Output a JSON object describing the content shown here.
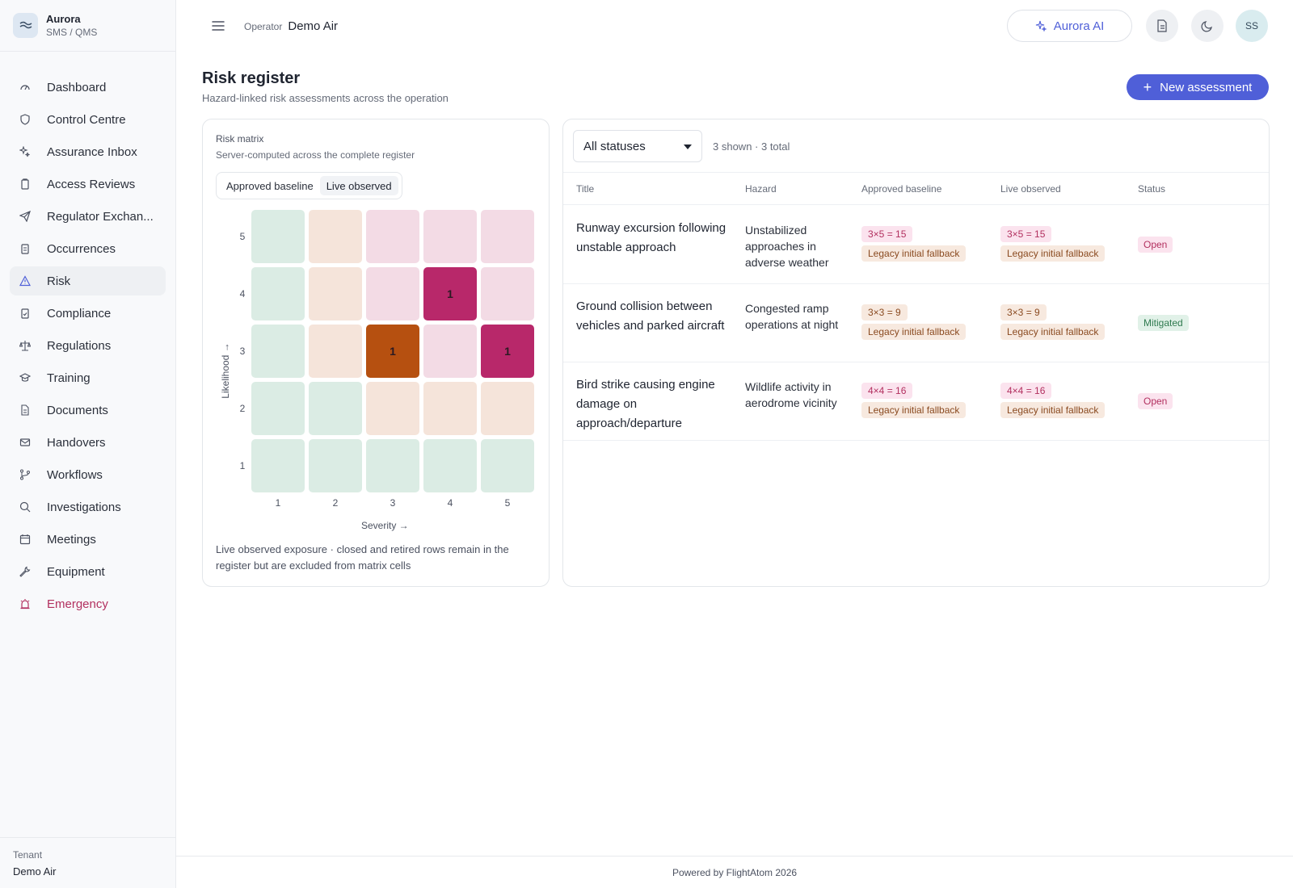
{
  "brand": {
    "name": "Aurora",
    "subtitle": "SMS / QMS"
  },
  "sidebar": {
    "items": [
      {
        "label": "Dashboard",
        "icon": "gauge-icon"
      },
      {
        "label": "Control Centre",
        "icon": "shield-icon"
      },
      {
        "label": "Assurance Inbox",
        "icon": "sparkle-icon"
      },
      {
        "label": "Access Reviews",
        "icon": "clipboard-icon"
      },
      {
        "label": "Regulator Exchan...",
        "icon": "send-icon"
      },
      {
        "label": "Occurrences",
        "icon": "clipboard-list-icon"
      },
      {
        "label": "Risk",
        "icon": "warning-triangle-icon",
        "active": true
      },
      {
        "label": "Compliance",
        "icon": "clipboard-check-icon"
      },
      {
        "label": "Regulations",
        "icon": "scales-icon"
      },
      {
        "label": "Training",
        "icon": "graduation-cap-icon"
      },
      {
        "label": "Documents",
        "icon": "document-icon"
      },
      {
        "label": "Handovers",
        "icon": "mail-icon"
      },
      {
        "label": "Workflows",
        "icon": "git-branch-icon"
      },
      {
        "label": "Investigations",
        "icon": "search-icon"
      },
      {
        "label": "Meetings",
        "icon": "calendar-icon"
      },
      {
        "label": "Equipment",
        "icon": "wrench-icon"
      },
      {
        "label": "Emergency",
        "icon": "siren-icon",
        "danger": true
      }
    ],
    "tenant_label": "Tenant",
    "tenant_name": "Demo Air"
  },
  "topbar": {
    "operator_label": "Operator",
    "operator_value": "Demo Air",
    "ai_label": "Aurora AI",
    "avatar_initials": "SS"
  },
  "page": {
    "title": "Risk register",
    "subtitle": "Hazard-linked risk assessments across the operation",
    "new_button": "New assessment"
  },
  "matrix": {
    "title": "Risk matrix",
    "subtitle": "Server-computed across the complete register",
    "toggle": [
      "Approved baseline",
      "Live observed"
    ],
    "toggle_selected": "Live observed",
    "severity_ticks": [
      "1",
      "2",
      "3",
      "4",
      "5"
    ],
    "likelihood_ticks": [
      "5",
      "4",
      "3",
      "2",
      "1"
    ],
    "x_axis": "Severity →",
    "y_axis": "Likelihood →",
    "cells": [
      {
        "likelihood": 4,
        "severity": 4,
        "count": "1"
      },
      {
        "likelihood": 3,
        "severity": 3,
        "count": "1"
      },
      {
        "likelihood": 3,
        "severity": 5,
        "count": "1"
      }
    ],
    "note": "Live observed exposure · closed and retired rows remain in the register but are excluded from matrix cells",
    "colors": {
      "low": "#dbece4",
      "medium": "#f5e4da",
      "high": "#f3dbe5",
      "filled_high": "#b8286a",
      "filled_medium": "#b65010"
    }
  },
  "table": {
    "filter_value": "All statuses",
    "count_text": "3 shown · 3 total",
    "headers": [
      "Title",
      "Hazard",
      "Approved baseline",
      "Live observed",
      "Status"
    ],
    "rows": [
      {
        "title": "Runway excursion following unstable approach",
        "hazard": "Unstabilized approaches in adverse weather",
        "approved_score": "3×5  = 15",
        "approved_note": "Legacy initial fallback",
        "live_score": "3×5  = 15",
        "live_note": "Legacy initial fallback",
        "status": "Open",
        "level": "high"
      },
      {
        "title": "Ground collision between vehicles and parked aircraft",
        "hazard": "Congested ramp operations at night",
        "approved_score": "3×3  = 9",
        "approved_note": "Legacy initial fallback",
        "live_score": "3×3  = 9",
        "live_note": "Legacy initial fallback",
        "status": "Mitigated",
        "level": "medium"
      },
      {
        "title": "Bird strike causing engine damage on approach/departure",
        "hazard": "Wildlife activity in aerodrome vicinity",
        "approved_score": "4×4  = 16",
        "approved_note": "Legacy initial fallback",
        "live_score": "4×4  = 16",
        "live_note": "Legacy initial fallback",
        "status": "Open",
        "level": "high"
      }
    ]
  },
  "footer": {
    "text": "Powered by FlightAtom 2026"
  }
}
